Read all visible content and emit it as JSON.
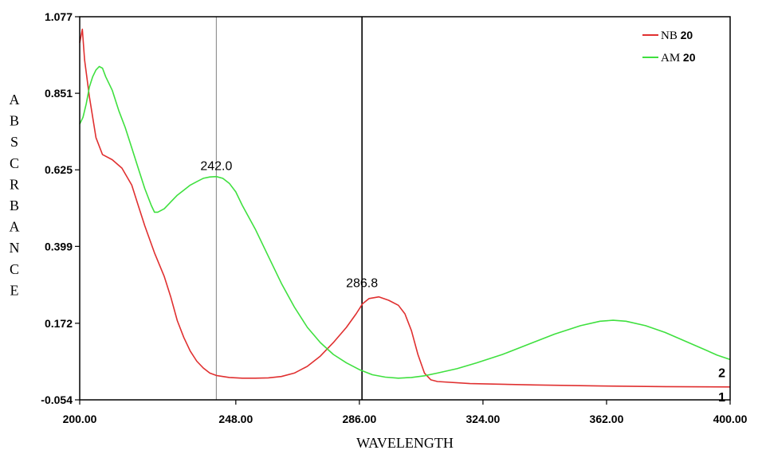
{
  "chart_data": {
    "type": "line",
    "xlabel": "WAVELENGTH",
    "ylabel": "ABSCRBANCE",
    "xlim": [
      200,
      400
    ],
    "ylim": [
      -0.054,
      1.077
    ],
    "x_ticks": [
      "200.00",
      "248.00",
      "286.00",
      "324.00",
      "362.00",
      "400.00"
    ],
    "x_tick_values": [
      200,
      248,
      286,
      324,
      362,
      400
    ],
    "y_ticks": [
      "1.077",
      "0.851",
      "0.625",
      "0.399",
      "0.172",
      "-0.054"
    ],
    "y_tick_values": [
      1.077,
      0.851,
      0.625,
      0.399,
      0.172,
      -0.054
    ],
    "legend_position": "top-right",
    "cursor_lines": [
      {
        "x": 242.0,
        "color": "#808080"
      },
      {
        "x": 286.8,
        "color": "#000000"
      }
    ],
    "annotations": [
      {
        "text": "242.0",
        "x": 242.0,
        "y": 0.605
      },
      {
        "text": "286.8",
        "x": 286.8,
        "y": 0.26
      }
    ],
    "series": [
      {
        "name": "NB 20",
        "legend_name": "NB",
        "legend_bold": "20",
        "color": "#e03030",
        "end_marker": "1",
        "points": [
          [
            200,
            1.0
          ],
          [
            200.8,
            1.04
          ],
          [
            201.5,
            0.95
          ],
          [
            203,
            0.84
          ],
          [
            205,
            0.72
          ],
          [
            207,
            0.67
          ],
          [
            210,
            0.655
          ],
          [
            213,
            0.63
          ],
          [
            216,
            0.58
          ],
          [
            218,
            0.52
          ],
          [
            220,
            0.46
          ],
          [
            223,
            0.38
          ],
          [
            226,
            0.31
          ],
          [
            228,
            0.25
          ],
          [
            230,
            0.18
          ],
          [
            232,
            0.13
          ],
          [
            234,
            0.09
          ],
          [
            236,
            0.06
          ],
          [
            238,
            0.04
          ],
          [
            240,
            0.025
          ],
          [
            242,
            0.018
          ],
          [
            246,
            0.012
          ],
          [
            250,
            0.01
          ],
          [
            254,
            0.01
          ],
          [
            258,
            0.011
          ],
          [
            262,
            0.015
          ],
          [
            266,
            0.025
          ],
          [
            270,
            0.045
          ],
          [
            274,
            0.075
          ],
          [
            278,
            0.115
          ],
          [
            282,
            0.16
          ],
          [
            285,
            0.2
          ],
          [
            287,
            0.23
          ],
          [
            289,
            0.245
          ],
          [
            292,
            0.25
          ],
          [
            295,
            0.24
          ],
          [
            298,
            0.225
          ],
          [
            300,
            0.2
          ],
          [
            302,
            0.15
          ],
          [
            304,
            0.08
          ],
          [
            306,
            0.025
          ],
          [
            308,
            0.005
          ],
          [
            310,
            0.0
          ],
          [
            320,
            -0.006
          ],
          [
            340,
            -0.01
          ],
          [
            360,
            -0.013
          ],
          [
            380,
            -0.015
          ],
          [
            400,
            -0.016
          ]
        ]
      },
      {
        "name": "AM 20",
        "legend_name": "AM",
        "legend_bold": "20",
        "color": "#3fe03f",
        "end_marker": "2",
        "points": [
          [
            200,
            0.76
          ],
          [
            201,
            0.78
          ],
          [
            202,
            0.82
          ],
          [
            203,
            0.87
          ],
          [
            204,
            0.9
          ],
          [
            205,
            0.92
          ],
          [
            206,
            0.93
          ],
          [
            207,
            0.925
          ],
          [
            208,
            0.9
          ],
          [
            210,
            0.86
          ],
          [
            212,
            0.8
          ],
          [
            214,
            0.75
          ],
          [
            216,
            0.69
          ],
          [
            218,
            0.63
          ],
          [
            220,
            0.57
          ],
          [
            222,
            0.52
          ],
          [
            223,
            0.5
          ],
          [
            224,
            0.5
          ],
          [
            226,
            0.51
          ],
          [
            228,
            0.53
          ],
          [
            230,
            0.55
          ],
          [
            232,
            0.565
          ],
          [
            234,
            0.58
          ],
          [
            236,
            0.59
          ],
          [
            238,
            0.6
          ],
          [
            240,
            0.604
          ],
          [
            242,
            0.605
          ],
          [
            244,
            0.6
          ],
          [
            246,
            0.585
          ],
          [
            248,
            0.56
          ],
          [
            250,
            0.52
          ],
          [
            254,
            0.45
          ],
          [
            258,
            0.37
          ],
          [
            262,
            0.29
          ],
          [
            266,
            0.22
          ],
          [
            270,
            0.16
          ],
          [
            274,
            0.115
          ],
          [
            278,
            0.08
          ],
          [
            282,
            0.055
          ],
          [
            286,
            0.035
          ],
          [
            290,
            0.02
          ],
          [
            294,
            0.013
          ],
          [
            298,
            0.01
          ],
          [
            302,
            0.012
          ],
          [
            306,
            0.017
          ],
          [
            310,
            0.025
          ],
          [
            316,
            0.038
          ],
          [
            322,
            0.055
          ],
          [
            330,
            0.08
          ],
          [
            338,
            0.11
          ],
          [
            346,
            0.14
          ],
          [
            354,
            0.165
          ],
          [
            360,
            0.178
          ],
          [
            364,
            0.181
          ],
          [
            368,
            0.178
          ],
          [
            374,
            0.165
          ],
          [
            380,
            0.145
          ],
          [
            386,
            0.12
          ],
          [
            392,
            0.095
          ],
          [
            396,
            0.078
          ],
          [
            400,
            0.065
          ]
        ]
      }
    ]
  }
}
